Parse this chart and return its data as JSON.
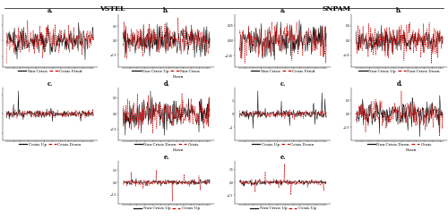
{
  "title_left": "VSTEL",
  "title_right": "SNPAM",
  "line_color_black": "#111111",
  "line_color_red": "#cc0000",
  "fig_bg": "#ffffff",
  "seed": 42,
  "n_points": 200,
  "panels_row1": [
    {
      "col": 0,
      "label": "a.",
      "leg": [
        "Non-Crisis",
        "Crisis Priod"
      ]
    },
    {
      "col": 1,
      "label": "b.",
      "leg": [
        "Non-Crisis Up",
        "Non-Crisis\nDown"
      ]
    },
    {
      "col": 2,
      "label": "a.",
      "leg": [
        "Non-Crisis",
        "Crisis Priod"
      ]
    },
    {
      "col": 3,
      "label": "b.",
      "leg": [
        "Non-Crisis Up",
        "Non-Crisis Down"
      ]
    }
  ],
  "panels_row2": [
    {
      "col": 0,
      "label": "c.",
      "leg": [
        "Crisis Up",
        "Crisis Down"
      ]
    },
    {
      "col": 1,
      "label": "d.",
      "leg": [
        "Non-Crisis Down",
        "Crisis\nDown"
      ]
    },
    {
      "col": 2,
      "label": "c.",
      "leg": [
        "Crisis Up",
        "Crisis Down"
      ]
    },
    {
      "col": 3,
      "label": "d.",
      "leg": [
        "Non-Crisis Down",
        "Crisis\nDown"
      ]
    }
  ],
  "panels_row3": [
    {
      "col": 1,
      "label": "e.",
      "leg": [
        "Non-Crisis Up",
        "Crisis Up"
      ]
    },
    {
      "col": 2,
      "label": "e.",
      "leg": [
        "Non-Crisis Up",
        "Crisis Up"
      ]
    }
  ]
}
